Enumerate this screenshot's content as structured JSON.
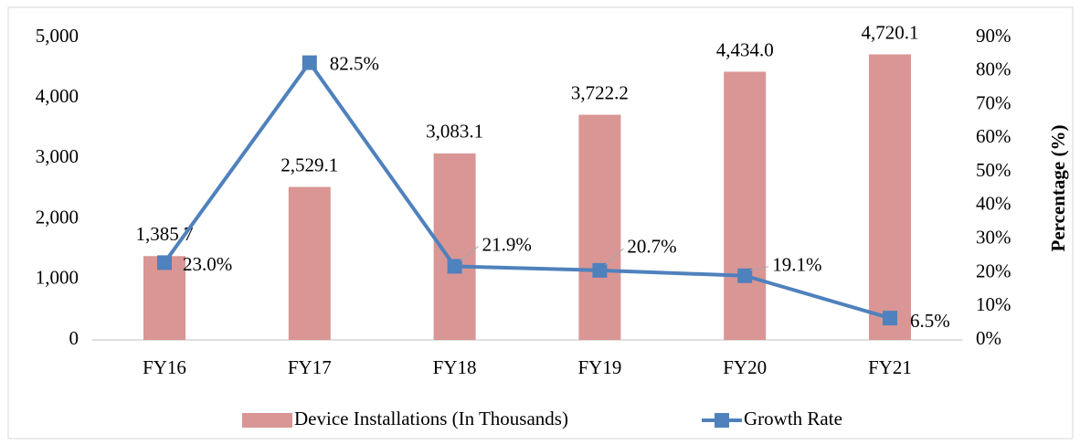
{
  "chart_data": {
    "type": "bar",
    "categories": [
      "FY16",
      "FY17",
      "FY18",
      "FY19",
      "FY20",
      "FY21"
    ],
    "series": [
      {
        "name": "Device Installations (In Thousands)",
        "type": "bar",
        "color": "#d99694",
        "values": [
          1385.7,
          2529.1,
          3083.1,
          3722.2,
          4434.0,
          4720.1
        ],
        "value_labels": [
          "1,385.7",
          "2,529.1",
          "3,083.1",
          "3,722.2",
          "4,434.0",
          "4,720.1"
        ]
      },
      {
        "name": "Growth Rate",
        "type": "line",
        "axis": "y2",
        "color": "#4f81bd",
        "values": [
          23.0,
          82.5,
          21.9,
          20.7,
          19.1,
          6.5
        ],
        "value_labels": [
          "23.0%",
          "82.5%",
          "21.9%",
          "20.7%",
          "19.1%",
          "6.5%"
        ]
      }
    ],
    "ylim": [
      0,
      5000
    ],
    "yticks": [
      0,
      {
        "value": 1000,
        "label": "1,000"
      },
      {
        "value": 2000,
        "label": "2,000"
      },
      {
        "value": 3000,
        "label": "3,000"
      },
      {
        "value": 4000,
        "label": "4,000"
      },
      {
        "value": 5000,
        "label": "5,000"
      }
    ],
    "y2lim": [
      0,
      90
    ],
    "y2ticks": [
      {
        "value": 0,
        "label": "0%"
      },
      {
        "value": 10,
        "label": "10%"
      },
      {
        "value": 20,
        "label": "20%"
      },
      {
        "value": 30,
        "label": "30%"
      },
      {
        "value": 40,
        "label": "40%"
      },
      {
        "value": 50,
        "label": "50%"
      },
      {
        "value": 60,
        "label": "60%"
      },
      {
        "value": 70,
        "label": "70%"
      },
      {
        "value": 80,
        "label": "80%"
      },
      {
        "value": 90,
        "label": "90%"
      }
    ],
    "y2label": "Percentage (%)",
    "grid": false,
    "legend": "bottom"
  }
}
